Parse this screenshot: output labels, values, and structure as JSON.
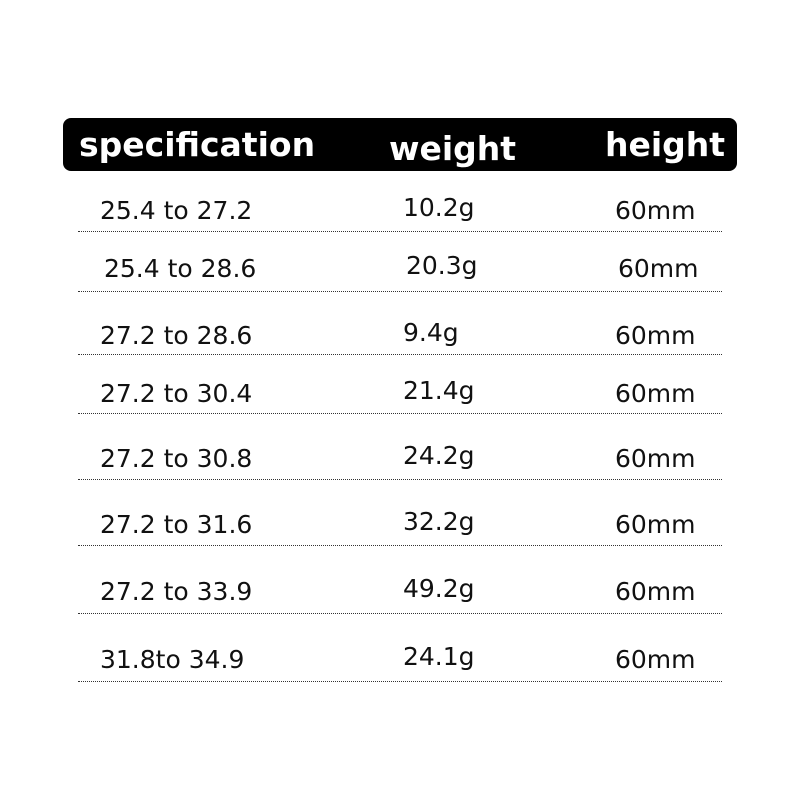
{
  "table": {
    "headers": [
      "specification",
      "weight",
      "height"
    ],
    "rows": [
      [
        "25.4 to 27.2",
        "10.2g",
        "60mm"
      ],
      [
        "25.4 to 28.6",
        "20.3g",
        "60mm"
      ],
      [
        "27.2 to 28.6",
        "9.4g",
        "60mm"
      ],
      [
        "27.2 to 30.4",
        "21.4g",
        "60mm"
      ],
      [
        "27.2 to 30.8",
        "24.2g",
        "60mm"
      ],
      [
        "27.2 to 31.6",
        "32.2g",
        "60mm"
      ],
      [
        "27.2 to 33.9",
        "49.2g",
        "60mm"
      ],
      [
        "31.8to 34.9",
        "24.1g",
        "60mm"
      ]
    ]
  },
  "colors": {
    "header_bg": "#000000",
    "header_text": "#ffffff",
    "text": "#111111"
  }
}
